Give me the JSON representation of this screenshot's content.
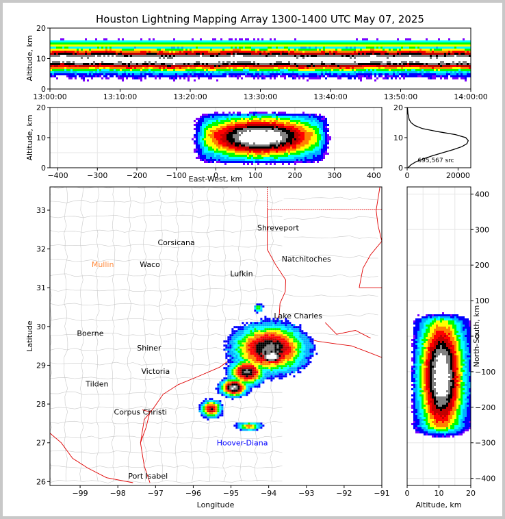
{
  "title": "Houston Lightning Mapping Array 1300-1400 UTC May 07, 2025",
  "colors": {
    "scale": [
      "#7a00ff",
      "#0000ff",
      "#00b0ff",
      "#00ffff",
      "#00ff00",
      "#ffff00",
      "#ff8000",
      "#ff0000",
      "#c00000",
      "#000000",
      "#808080",
      "#ffffff"
    ],
    "state_border": "#e00000",
    "county_border": "#c8c8c8"
  },
  "time_panel": {
    "ylabel": "Altitude, km",
    "yticks": [
      "0",
      "10",
      "20"
    ],
    "xticks": [
      "13:00:00",
      "13:10:00",
      "13:20:00",
      "13:30:00",
      "13:40:00",
      "13:50:00",
      "14:00:00"
    ]
  },
  "ew_panel": {
    "ylabel": "Altitude, km",
    "xlabel": "East-West, km",
    "yticks": [
      "0",
      "10",
      "20"
    ],
    "xticks": [
      "−400",
      "−300",
      "−200",
      "−100",
      "0",
      "100",
      "200",
      "300",
      "400"
    ]
  },
  "hist_panel": {
    "count_label": "695,567 src",
    "xticks": [
      "0",
      "20000"
    ],
    "yticks": [
      "0",
      "10",
      "20"
    ]
  },
  "map_panel": {
    "xlabel": "Longitude",
    "ylabel": "Latitude",
    "xticks": [
      "−99",
      "−98",
      "−97",
      "−96",
      "−95",
      "−94",
      "−93",
      "−92",
      "−91"
    ],
    "yticks": [
      "26",
      "27",
      "28",
      "29",
      "30",
      "31",
      "32",
      "33"
    ],
    "places": [
      {
        "name": "Shreveport",
        "lon": -93.75,
        "lat": 32.55,
        "color": "#000000"
      },
      {
        "name": "Corsicana",
        "lon": -96.45,
        "lat": 32.17,
        "color": "#000000"
      },
      {
        "name": "Natchitoches",
        "lon": -93.0,
        "lat": 31.75,
        "color": "#000000"
      },
      {
        "name": "Mullin",
        "lon": -98.4,
        "lat": 31.6,
        "color": "#ff8c40"
      },
      {
        "name": "Waco",
        "lon": -97.15,
        "lat": 31.6,
        "color": "#000000"
      },
      {
        "name": "Lufkin",
        "lon": -94.72,
        "lat": 31.37,
        "color": "#000000"
      },
      {
        "name": "Lake Charles",
        "lon": -93.22,
        "lat": 30.28,
        "color": "#000000"
      },
      {
        "name": "Boerne",
        "lon": -98.73,
        "lat": 29.83,
        "color": "#000000"
      },
      {
        "name": "Shiner",
        "lon": -97.17,
        "lat": 29.45,
        "color": "#000000"
      },
      {
        "name": "Victoria",
        "lon": -97.0,
        "lat": 28.85,
        "color": "#000000"
      },
      {
        "name": "Tilden",
        "lon": -98.55,
        "lat": 28.52,
        "color": "#000000"
      },
      {
        "name": "Corpus Christi",
        "lon": -97.4,
        "lat": 27.8,
        "color": "#000000"
      },
      {
        "name": "Hoover-Diana",
        "lon": -94.7,
        "lat": 27.0,
        "color": "#0000ff"
      },
      {
        "name": "Port Isabel",
        "lon": -97.2,
        "lat": 26.15,
        "color": "#000000"
      }
    ]
  },
  "ns_panel": {
    "xlabel": "Altitude, km",
    "ylabel": "North-South, km",
    "xticks": [
      "0",
      "10",
      "20"
    ],
    "yticks": [
      "−400",
      "−300",
      "−200",
      "−100",
      "0",
      "100",
      "200",
      "300",
      "400"
    ]
  },
  "chart_data": [
    {
      "type": "heatmap",
      "panel": "altitude-time",
      "title": "Houston Lightning Mapping Array 1300-1400 UTC May 07, 2025",
      "xlabel": "",
      "ylabel": "Altitude, km",
      "xlim": [
        "13:00:00",
        "14:00:00"
      ],
      "ylim": [
        0,
        20
      ],
      "density_peak_altitude_km": [
        8,
        12
      ]
    },
    {
      "type": "heatmap",
      "panel": "altitude-east-west",
      "xlabel": "East-West, km",
      "ylabel": "Altitude, km",
      "xlim": [
        -420,
        420
      ],
      "ylim": [
        0,
        20
      ],
      "source_extent_km": [
        -50,
        270
      ]
    },
    {
      "type": "line",
      "panel": "altitude-histogram",
      "xlim": [
        0,
        25000
      ],
      "ylim": [
        0,
        20
      ],
      "x": [
        300,
        1500,
        3500,
        6500,
        10000,
        14000,
        18000,
        21500,
        23500,
        24000,
        23000,
        19000,
        12000,
        6000,
        3000,
        1500,
        800,
        300,
        100
      ],
      "y": [
        0,
        1,
        2,
        3,
        4,
        5,
        6,
        7,
        8,
        9,
        10,
        11,
        12,
        13,
        14,
        15,
        16,
        18,
        20
      ],
      "annotation": "695,567 src"
    },
    {
      "type": "heatmap",
      "panel": "plan-view",
      "xlabel": "Longitude",
      "ylabel": "Latitude",
      "xlim": [
        -99.8,
        -91.0
      ],
      "ylim": [
        25.9,
        33.6
      ],
      "density_peak_region": {
        "lon": [
          -94.3,
          -93.6
        ],
        "lat": [
          29.0,
          29.4
        ]
      }
    },
    {
      "type": "heatmap",
      "panel": "north-south-altitude",
      "xlabel": "Altitude, km",
      "ylabel": "North-South, km",
      "xlim": [
        0,
        20
      ],
      "ylim": [
        -420,
        420
      ],
      "source_extent_km": [
        -300,
        70
      ]
    }
  ]
}
